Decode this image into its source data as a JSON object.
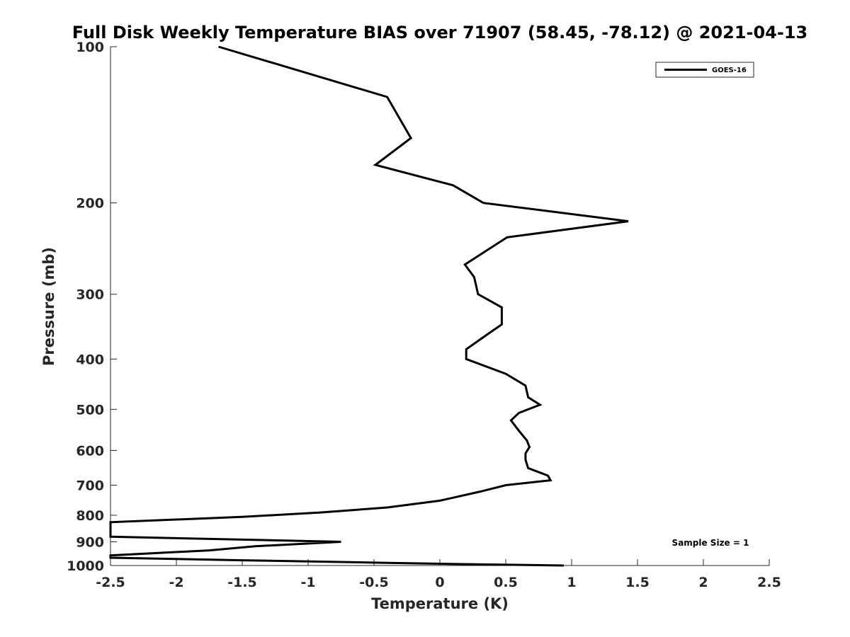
{
  "chart_data": {
    "type": "line",
    "title": "Full Disk Weekly Temperature BIAS over 71907 (58.45, -78.12) @ 2021-04-13",
    "xlabel": "Temperature (K)",
    "ylabel": "Pressure (mb)",
    "xlim": [
      -2.5,
      2.5
    ],
    "ylim": [
      100,
      1000
    ],
    "y_scale": "log",
    "y_direction": "reversed",
    "grid": false,
    "legend_position": "top-right",
    "x_ticks": [
      -2.5,
      -2,
      -1.5,
      -1,
      -0.5,
      0,
      0.5,
      1,
      1.5,
      2,
      2.5
    ],
    "x_tick_labels": [
      "-2.5",
      "-2",
      "-1.5",
      "-1",
      "-0.5",
      "0",
      "0.5",
      "1",
      "1.5",
      "2",
      "2.5"
    ],
    "y_ticks": [
      100,
      200,
      300,
      400,
      500,
      600,
      700,
      800,
      900,
      1000
    ],
    "y_tick_labels": [
      "100",
      "200",
      "300",
      "400",
      "500",
      "600",
      "700",
      "800",
      "900",
      "1000"
    ],
    "series": [
      {
        "name": "GOES-16",
        "color": "#000000",
        "points": [
          {
            "x": -1.68,
            "p": 100
          },
          {
            "x": -0.4,
            "p": 125
          },
          {
            "x": -0.22,
            "p": 150
          },
          {
            "x": -0.49,
            "p": 169
          },
          {
            "x": 0.1,
            "p": 185
          },
          {
            "x": 0.33,
            "p": 200
          },
          {
            "x": 1.43,
            "p": 217
          },
          {
            "x": 0.51,
            "p": 233
          },
          {
            "x": 0.19,
            "p": 263
          },
          {
            "x": 0.26,
            "p": 278
          },
          {
            "x": 0.29,
            "p": 300
          },
          {
            "x": 0.47,
            "p": 318
          },
          {
            "x": 0.47,
            "p": 343
          },
          {
            "x": 0.33,
            "p": 363
          },
          {
            "x": 0.2,
            "p": 383
          },
          {
            "x": 0.2,
            "p": 400
          },
          {
            "x": 0.5,
            "p": 427
          },
          {
            "x": 0.65,
            "p": 450
          },
          {
            "x": 0.67,
            "p": 474
          },
          {
            "x": 0.76,
            "p": 490
          },
          {
            "x": 0.6,
            "p": 508
          },
          {
            "x": 0.54,
            "p": 525
          },
          {
            "x": 0.6,
            "p": 550
          },
          {
            "x": 0.66,
            "p": 574
          },
          {
            "x": 0.68,
            "p": 591
          },
          {
            "x": 0.65,
            "p": 608
          },
          {
            "x": 0.65,
            "p": 625
          },
          {
            "x": 0.67,
            "p": 649
          },
          {
            "x": 0.82,
            "p": 671
          },
          {
            "x": 0.84,
            "p": 685
          },
          {
            "x": 0.5,
            "p": 700
          },
          {
            "x": 0.31,
            "p": 720
          },
          {
            "x": 0.0,
            "p": 750
          },
          {
            "x": -0.4,
            "p": 773
          },
          {
            "x": -0.9,
            "p": 790
          },
          {
            "x": -1.5,
            "p": 806
          },
          {
            "x": -2.5,
            "p": 825
          },
          {
            "x": -2.5,
            "p": 880
          },
          {
            "x": -0.75,
            "p": 900
          },
          {
            "x": -1.4,
            "p": 918
          },
          {
            "x": -1.75,
            "p": 935
          },
          {
            "x": -2.5,
            "p": 956
          },
          {
            "x": -2.5,
            "p": 966
          },
          {
            "x": -1.5,
            "p": 977
          },
          {
            "x": -0.4,
            "p": 988
          },
          {
            "x": 0.3,
            "p": 995
          },
          {
            "x": 0.94,
            "p": 1000
          }
        ]
      }
    ],
    "annotations": [
      {
        "text": "Sample Size = 1",
        "x": 2.0,
        "p": 900
      }
    ]
  }
}
